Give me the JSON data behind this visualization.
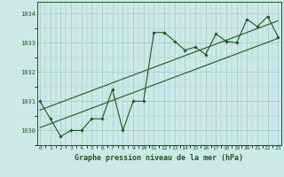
{
  "x": [
    0,
    1,
    2,
    3,
    4,
    5,
    6,
    7,
    8,
    9,
    10,
    11,
    12,
    13,
    14,
    15,
    16,
    17,
    18,
    19,
    20,
    21,
    22,
    23
  ],
  "y_data": [
    1031.0,
    1030.4,
    1029.8,
    1030.0,
    1030.0,
    1030.4,
    1030.4,
    1031.4,
    1030.0,
    1031.0,
    1031.0,
    1033.35,
    1033.35,
    1033.05,
    1032.75,
    1032.85,
    1032.6,
    1033.3,
    1033.05,
    1033.0,
    1033.8,
    1033.55,
    1033.9,
    1033.2
  ],
  "trend1_x": [
    0,
    23
  ],
  "trend1_y": [
    1030.1,
    1033.15
  ],
  "trend2_x": [
    0,
    23
  ],
  "trend2_y": [
    1030.7,
    1033.75
  ],
  "bg_color": "#cce8e8",
  "grid_color": "#aacccc",
  "line_color": "#1a5c1a",
  "ylabel_ticks": [
    1030,
    1031,
    1032,
    1033,
    1034
  ],
  "xlabel_label": "Graphe pression niveau de la mer (hPa)",
  "ylim": [
    1029.5,
    1034.4
  ],
  "xlim": [
    -0.3,
    23.3
  ]
}
